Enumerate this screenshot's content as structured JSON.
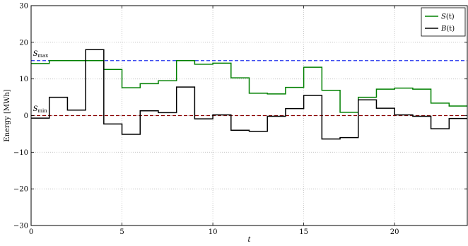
{
  "chart_data": {
    "type": "line",
    "step": "post",
    "xlabel": "t",
    "ylabel": "Energy [MWh]",
    "xlim": [
      0,
      24
    ],
    "ylim": [
      -30,
      30
    ],
    "xticks": [
      0,
      5,
      10,
      15,
      20
    ],
    "yticks": [
      -30,
      -20,
      -10,
      0,
      10,
      20,
      30
    ],
    "xtick_labels": [
      "0",
      "5",
      "10",
      "15",
      "20"
    ],
    "ytick_labels": [
      "−30",
      "−20",
      "−10",
      "0",
      "10",
      "20",
      "30"
    ],
    "grid": true,
    "legend_position": "top-right",
    "x": [
      0,
      1,
      2,
      3,
      4,
      5,
      6,
      7,
      8,
      9,
      10,
      11,
      12,
      13,
      14,
      15,
      16,
      17,
      18,
      19,
      20,
      21,
      22,
      23,
      24
    ],
    "series": [
      {
        "name": "S(t)",
        "name_parts": {
          "main": "S",
          "arg": "(t)"
        },
        "color": "#008000",
        "values": [
          14.2,
          15.0,
          15.0,
          15.0,
          12.6,
          7.6,
          8.7,
          9.5,
          15.0,
          14.0,
          14.3,
          10.3,
          6.1,
          5.9,
          7.7,
          13.2,
          6.9,
          0.9,
          5.0,
          7.2,
          7.5,
          7.2,
          3.4,
          2.6,
          2.6
        ]
      },
      {
        "name": "B(t)",
        "name_parts": {
          "main": "B",
          "arg": "(t)"
        },
        "color": "#000000",
        "values": [
          -0.7,
          5.0,
          1.5,
          18.0,
          -2.3,
          -5.1,
          1.3,
          0.8,
          7.8,
          -0.9,
          0.2,
          -4.0,
          -4.3,
          -0.2,
          1.9,
          5.5,
          -6.4,
          -6.0,
          4.3,
          2.0,
          0.2,
          -0.2,
          -3.6,
          -0.8,
          -0.8
        ]
      }
    ],
    "hlines": [
      {
        "name": "S_max",
        "y": 15,
        "color": "#2233ee",
        "style": "dashed"
      },
      {
        "name": "S_min",
        "y": 0,
        "color": "#8b0000",
        "style": "dashed"
      }
    ],
    "annotations": [
      {
        "main": "S",
        "sub": "max",
        "x": 0.1,
        "y": 16.3
      },
      {
        "main": "S",
        "sub": "min",
        "x": 0.1,
        "y": 1.3
      }
    ]
  }
}
